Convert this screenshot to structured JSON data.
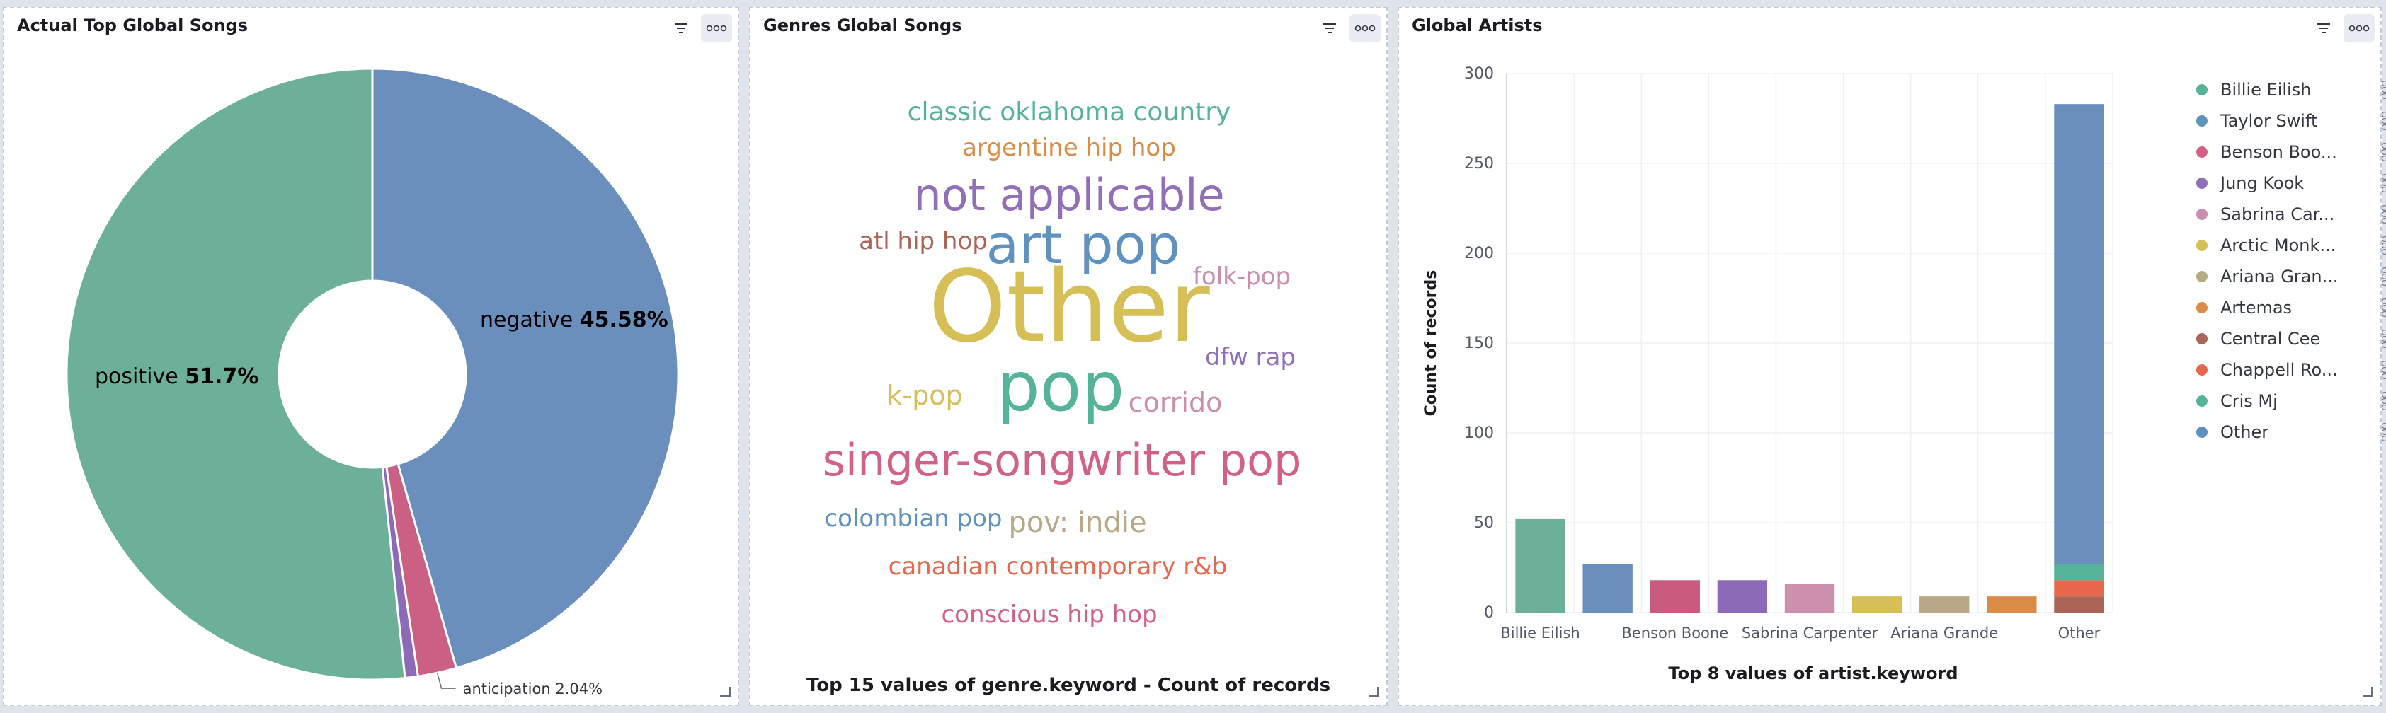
{
  "panels": {
    "songs": {
      "title": "Actual Top Global Songs"
    },
    "genres": {
      "title": "Genres Global Songs",
      "footer": "Top 15 values of genre.keyword - Count of records"
    },
    "artists": {
      "title": "Global Artists",
      "footer": "Top 8 values of artist.keyword"
    }
  },
  "chart_data": [
    {
      "type": "pie",
      "donut": true,
      "slices": [
        {
          "label": "negative",
          "percent": 45.58,
          "value_text": "45.58%",
          "color": "#6a8fbd"
        },
        {
          "label": "anticipation",
          "percent": 2.04,
          "value_text": "2.04%",
          "color": "#cc5f84"
        },
        {
          "label": "",
          "percent": 0.68,
          "value_text": "",
          "color": "#8c6ab8"
        },
        {
          "label": "positive",
          "percent": 51.7,
          "value_text": "51.7%",
          "color": "#6cb09a"
        }
      ]
    },
    {
      "type": "wordcloud",
      "words": [
        {
          "text": "classic oklahoma country",
          "color": "#54b399"
        },
        {
          "text": "argentine hip hop",
          "color": "#da8b45"
        },
        {
          "text": "not applicable",
          "color": "#9170b8"
        },
        {
          "text": "atl hip hop",
          "color": "#aa6556"
        },
        {
          "text": "art pop",
          "color": "#6092c0"
        },
        {
          "text": "folk-pop",
          "color": "#ca8eae"
        },
        {
          "text": "Other",
          "color": "#d6bf57"
        },
        {
          "text": "dfw rap",
          "color": "#9170b8"
        },
        {
          "text": "k-pop",
          "color": "#d6bf57"
        },
        {
          "text": "pop",
          "color": "#54b399"
        },
        {
          "text": "corrido",
          "color": "#ca8eae"
        },
        {
          "text": "singer-songwriter pop",
          "color": "#d36086"
        },
        {
          "text": "colombian pop",
          "color": "#6092c0"
        },
        {
          "text": "pov: indie",
          "color": "#b9a888"
        },
        {
          "text": "canadian contemporary r&b",
          "color": "#e7664c"
        },
        {
          "text": "conscious hip hop",
          "color": "#d36086"
        }
      ]
    },
    {
      "type": "bar",
      "stacked": true,
      "ylabel": "Count of records",
      "ylim": [
        0,
        300
      ],
      "yticks": [
        0,
        50,
        100,
        150,
        200,
        250,
        300
      ],
      "categories": [
        "Billie Eilish",
        "Taylor Swift",
        "Benson Boone",
        "Jung Kook",
        "Sabrina Carpenter",
        "Arctic Monkeys",
        "Ariana Grande",
        "Artemas",
        "Other"
      ],
      "x_tick_labels": [
        "Billie Eilish",
        "",
        "Benson Boone",
        "",
        "Sabrina Carpenter",
        "",
        "Ariana Grande",
        "",
        "Other"
      ],
      "bars": [
        {
          "category": "Billie Eilish",
          "segments": [
            {
              "series": "Billie Eilish",
              "value": 52,
              "color": "#6cb09a"
            }
          ]
        },
        {
          "category": "Taylor Swift",
          "segments": [
            {
              "series": "Taylor Swift",
              "value": 27,
              "color": "#6a8fbd"
            }
          ]
        },
        {
          "category": "Benson Boone",
          "segments": [
            {
              "series": "Benson Boone",
              "value": 18,
              "color": "#c95c7e"
            }
          ]
        },
        {
          "category": "Jung Kook",
          "segments": [
            {
              "series": "Jung Kook",
              "value": 18,
              "color": "#8c6ab8"
            }
          ]
        },
        {
          "category": "Sabrina Carpenter",
          "segments": [
            {
              "series": "Sabrina Carpenter",
              "value": 16,
              "color": "#cc8fae"
            }
          ]
        },
        {
          "category": "Arctic Monkeys",
          "segments": [
            {
              "series": "Arctic Monkeys",
              "value": 9,
              "color": "#d6bf57"
            }
          ]
        },
        {
          "category": "Ariana Grande",
          "segments": [
            {
              "series": "Ariana Grande",
              "value": 9,
              "color": "#b9a888"
            }
          ]
        },
        {
          "category": "Artemas",
          "segments": [
            {
              "series": "Artemas",
              "value": 9,
              "color": "#da8b45"
            }
          ]
        },
        {
          "category": "Other",
          "segments": [
            {
              "series": "Central Cee",
              "value": 9,
              "color": "#aa6556"
            },
            {
              "series": "Chappell Roan",
              "value": 9,
              "color": "#e7664c"
            },
            {
              "series": "Cris Mj",
              "value": 9,
              "color": "#54b399"
            },
            {
              "series": "Other",
              "value": 256,
              "color": "#6a8fbd"
            }
          ]
        }
      ],
      "legend": [
        {
          "label": "Billie Eilish",
          "color": "#54b399"
        },
        {
          "label": "Taylor Swift",
          "color": "#6092c0"
        },
        {
          "label": "Benson Boo...",
          "color": "#d36086"
        },
        {
          "label": "Jung Kook",
          "color": "#9170b8"
        },
        {
          "label": "Sabrina Car...",
          "color": "#ca8eae"
        },
        {
          "label": "Arctic Monk...",
          "color": "#d6bf57"
        },
        {
          "label": "Ariana Gran...",
          "color": "#b9aa88"
        },
        {
          "label": "Artemas",
          "color": "#da8b45"
        },
        {
          "label": "Central Cee",
          "color": "#aa6556"
        },
        {
          "label": "Chappell Ro...",
          "color": "#e7664c"
        },
        {
          "label": "Cris Mj",
          "color": "#54b399"
        },
        {
          "label": "Other",
          "color": "#6092c0"
        }
      ],
      "legend_position": "right"
    }
  ]
}
